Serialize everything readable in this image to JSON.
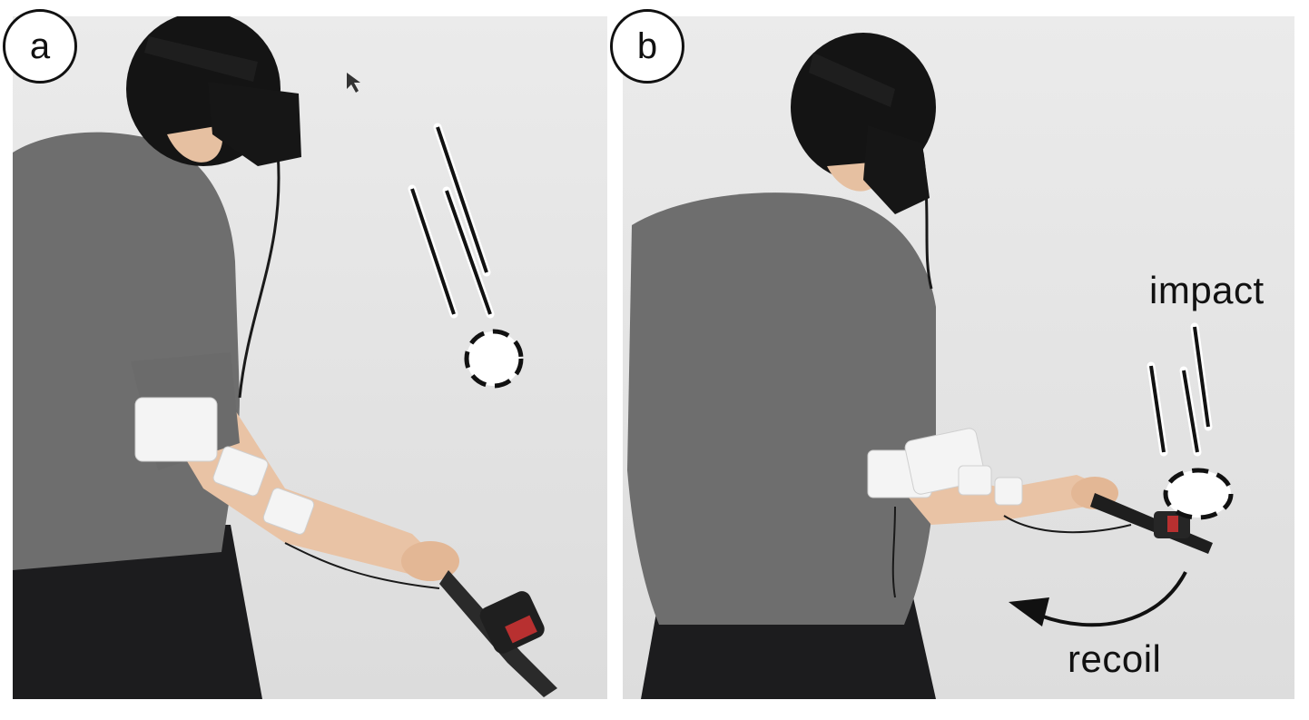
{
  "figure": {
    "panels": [
      {
        "id": "a",
        "label": "a"
      },
      {
        "id": "b",
        "label": "b"
      }
    ],
    "annotations": {
      "impact": "impact",
      "recoil": "recoil"
    },
    "colors": {
      "background": "#e6e6e6",
      "shirt": "#6e6e6e",
      "pants": "#1c1c1e",
      "hair": "#141414",
      "skin": "#e9c3a5",
      "ems_pad": "#f4f4f4",
      "outline": "#111111"
    }
  }
}
